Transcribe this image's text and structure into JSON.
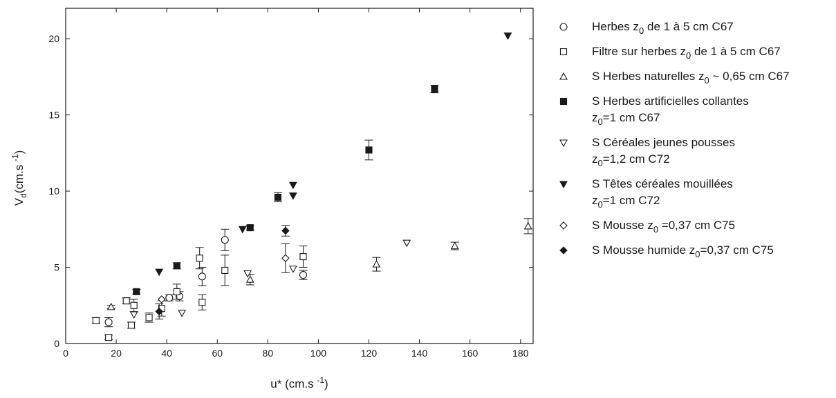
{
  "chart_data": {
    "type": "scatter",
    "xlabel": {
      "main": "u* (cm.s",
      "sup": "-1",
      "close": ")"
    },
    "ylabel": {
      "main": "V",
      "sub": "d",
      "rest": "(cm.s",
      "sup": "-1",
      "close": ")"
    },
    "xlim": [
      0,
      185
    ],
    "ylim": [
      0,
      22
    ],
    "xticks": [
      0,
      20,
      40,
      60,
      80,
      100,
      120,
      140,
      160,
      180
    ],
    "yticks": [
      0,
      5,
      10,
      15,
      20
    ],
    "grid": false,
    "legend_position": "right",
    "series": [
      {
        "name": "Herbes z0 de 1 à 5 cm C67",
        "legend_lines": [
          [
            {
              "t": "Herbes z"
            },
            {
              "t": "0",
              "sub": true
            },
            {
              "t": "  de 1 à 5 cm C67"
            }
          ]
        ],
        "marker": "circle-open",
        "points": [
          {
            "x": 17,
            "y": 1.4,
            "err": 0.3
          },
          {
            "x": 41,
            "y": 3.0,
            "err": 0.2
          },
          {
            "x": 45,
            "y": 3.1,
            "err": 0.3
          },
          {
            "x": 54,
            "y": 4.4,
            "err": 0.6
          },
          {
            "x": 63,
            "y": 6.8,
            "err": 0.7
          },
          {
            "x": 94,
            "y": 4.5,
            "err": 0.3
          }
        ]
      },
      {
        "name": "Filtre sur herbes z0 de 1 à 5 cm C67",
        "legend_lines": [
          [
            {
              "t": "Filtre sur herbes z"
            },
            {
              "t": "0",
              "sub": true
            },
            {
              "t": " de 1 à 5 cm C67"
            }
          ]
        ],
        "marker": "square-open",
        "points": [
          {
            "x": 12,
            "y": 1.5,
            "err": 0.2
          },
          {
            "x": 17,
            "y": 0.4,
            "err": 0.15
          },
          {
            "x": 24,
            "y": 2.8,
            "err": 0.2
          },
          {
            "x": 26,
            "y": 1.2,
            "err": 0.2
          },
          {
            "x": 27,
            "y": 2.5,
            "err": 0.4
          },
          {
            "x": 33,
            "y": 1.7,
            "err": 0.3
          },
          {
            "x": 38,
            "y": 2.3,
            "err": 0.5
          },
          {
            "x": 44,
            "y": 3.4,
            "err": 0.5
          },
          {
            "x": 53,
            "y": 5.6,
            "err": 0.7
          },
          {
            "x": 54,
            "y": 2.7,
            "err": 0.5
          },
          {
            "x": 63,
            "y": 4.8,
            "err": 1.0
          },
          {
            "x": 94,
            "y": 5.7,
            "err": 0.7
          }
        ]
      },
      {
        "name": "S Herbes naturelles z0 ~ 0,65 cm C67",
        "legend_lines": [
          [
            {
              "t": "S Herbes naturelles z"
            },
            {
              "t": "0",
              "sub": true
            },
            {
              "t": " ~ 0,65 cm C67"
            }
          ]
        ],
        "marker": "triangle-up-open",
        "points": [
          {
            "x": 18,
            "y": 2.4,
            "err": 0.1
          },
          {
            "x": 73,
            "y": 4.2,
            "err": 0.35
          },
          {
            "x": 123,
            "y": 5.2,
            "err": 0.45
          },
          {
            "x": 154,
            "y": 6.4,
            "err": 0.25
          },
          {
            "x": 183,
            "y": 7.7,
            "err": 0.5
          }
        ]
      },
      {
        "name": "S Herbes artificielles collantes z0=1 cm C67",
        "legend_lines": [
          [
            {
              "t": "S Herbes artificielles collantes"
            }
          ],
          [
            {
              "t": "z"
            },
            {
              "t": "0",
              "sub": true
            },
            {
              "t": "=1 cm  C67"
            }
          ]
        ],
        "marker": "square-filled",
        "points": [
          {
            "x": 28,
            "y": 3.4,
            "err": 0.15
          },
          {
            "x": 44,
            "y": 5.1,
            "err": 0.2
          },
          {
            "x": 73,
            "y": 7.6,
            "err": 0.15
          },
          {
            "x": 84,
            "y": 9.6,
            "err": 0.3
          },
          {
            "x": 120,
            "y": 12.7,
            "err": 0.65
          },
          {
            "x": 146,
            "y": 16.7,
            "err": 0.25
          }
        ]
      },
      {
        "name": "S Céréales jeunes pousses z0=1,2 cm C72",
        "legend_lines": [
          [
            {
              "t": "S Céréales jeunes pousses"
            }
          ],
          [
            {
              "t": "z"
            },
            {
              "t": "0",
              "sub": true
            },
            {
              "t": "=1,2 cm    C72"
            }
          ]
        ],
        "marker": "triangle-down-open",
        "points": [
          {
            "x": 27,
            "y": 1.9
          },
          {
            "x": 46,
            "y": 2.0
          },
          {
            "x": 72,
            "y": 4.6
          },
          {
            "x": 90,
            "y": 4.9
          },
          {
            "x": 135,
            "y": 6.6
          }
        ]
      },
      {
        "name": "S Têtes céréales mouillées z0=1 cm C72",
        "legend_lines": [
          [
            {
              "t": "S Têtes céréales mouillées"
            }
          ],
          [
            {
              "t": "z"
            },
            {
              "t": "0",
              "sub": true
            },
            {
              "t": "=1 cm     C72"
            }
          ]
        ],
        "marker": "triangle-down-filled",
        "points": [
          {
            "x": 37,
            "y": 4.7
          },
          {
            "x": 70,
            "y": 7.5
          },
          {
            "x": 90,
            "y": 10.4
          },
          {
            "x": 90,
            "y": 9.7
          },
          {
            "x": 175,
            "y": 20.2
          }
        ]
      },
      {
        "name": "S Mousse z0 =0,37 cm C75",
        "legend_lines": [
          [
            {
              "t": "S Mousse z"
            },
            {
              "t": "0",
              "sub": true
            },
            {
              "t": " =0,37 cm  C75"
            }
          ]
        ],
        "marker": "diamond-open",
        "points": [
          {
            "x": 38,
            "y": 2.9
          },
          {
            "x": 87,
            "y": 5.6,
            "err": 0.95
          }
        ]
      },
      {
        "name": "S Mousse humide z0=0,37 cm C75",
        "legend_lines": [
          [
            {
              "t": "S Mousse humide z"
            },
            {
              "t": "0",
              "sub": true
            },
            {
              "t": "=0,37 cm    C75"
            }
          ]
        ],
        "marker": "diamond-filled",
        "points": [
          {
            "x": 37,
            "y": 2.1,
            "err": 0.5
          },
          {
            "x": 87,
            "y": 7.4,
            "err": 0.35
          }
        ]
      }
    ]
  }
}
